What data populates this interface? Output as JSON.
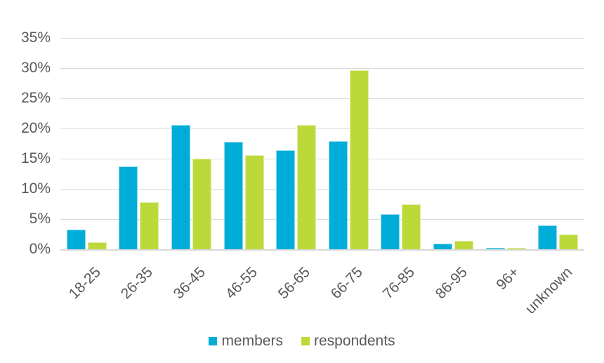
{
  "chart_data": {
    "type": "bar",
    "title": "",
    "categories": [
      "18-25",
      "26-35",
      "36-45",
      "46-55",
      "56-65",
      "66-75",
      "76-85",
      "86-95",
      "96+",
      "unknown"
    ],
    "series": [
      {
        "name": "members",
        "color": "#00ADD8",
        "values": [
          3.3,
          13.7,
          20.6,
          17.8,
          16.4,
          17.9,
          5.8,
          0.9,
          0.2,
          3.9
        ]
      },
      {
        "name": "respondents",
        "color": "#BCD93A",
        "values": [
          1.2,
          7.8,
          15.0,
          15.6,
          20.6,
          29.7,
          7.4,
          1.4,
          0.2,
          2.4
        ]
      }
    ],
    "y_ticks": [
      "0%",
      "5%",
      "10%",
      "15%",
      "20%",
      "25%",
      "30%",
      "35%"
    ],
    "ylim": [
      0,
      35
    ],
    "xlabel": "",
    "ylabel": "",
    "grid": "horizontal",
    "legend_position": "bottom",
    "colors": {
      "background": "#FFFFFF",
      "gridline": "#DBDBDB",
      "axis_line": "#D9D9D9",
      "text": "#595959"
    }
  }
}
